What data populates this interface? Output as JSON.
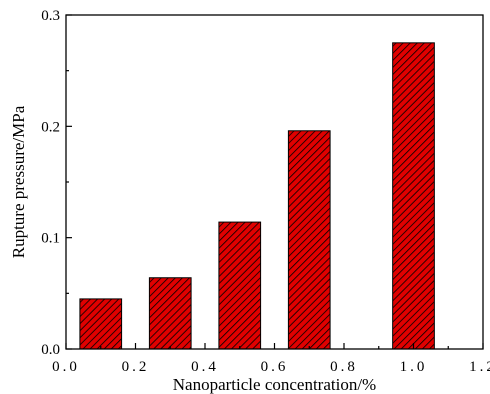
{
  "chart_data": {
    "type": "bar",
    "title": "",
    "xlabel": "Nanoparticle concentration/%",
    "ylabel": "Rupture pressure/MPa",
    "x": [
      0.1,
      0.3,
      0.5,
      0.7,
      1.0
    ],
    "values": [
      0.045,
      0.064,
      0.114,
      0.196,
      0.275
    ],
    "bar_width": 0.12,
    "xlim": [
      0.0,
      1.2
    ],
    "ylim": [
      0.0,
      0.3
    ],
    "x_ticks": [
      "0.0",
      "0.2",
      "0.4",
      "0.6",
      "0.8",
      "1.0",
      "1.2"
    ],
    "y_ticks": [
      "0.0",
      "0.1",
      "0.2",
      "0.3"
    ],
    "bar_color": "#e00000",
    "hatch_color": "#000000",
    "grid": false,
    "legend": "none"
  }
}
